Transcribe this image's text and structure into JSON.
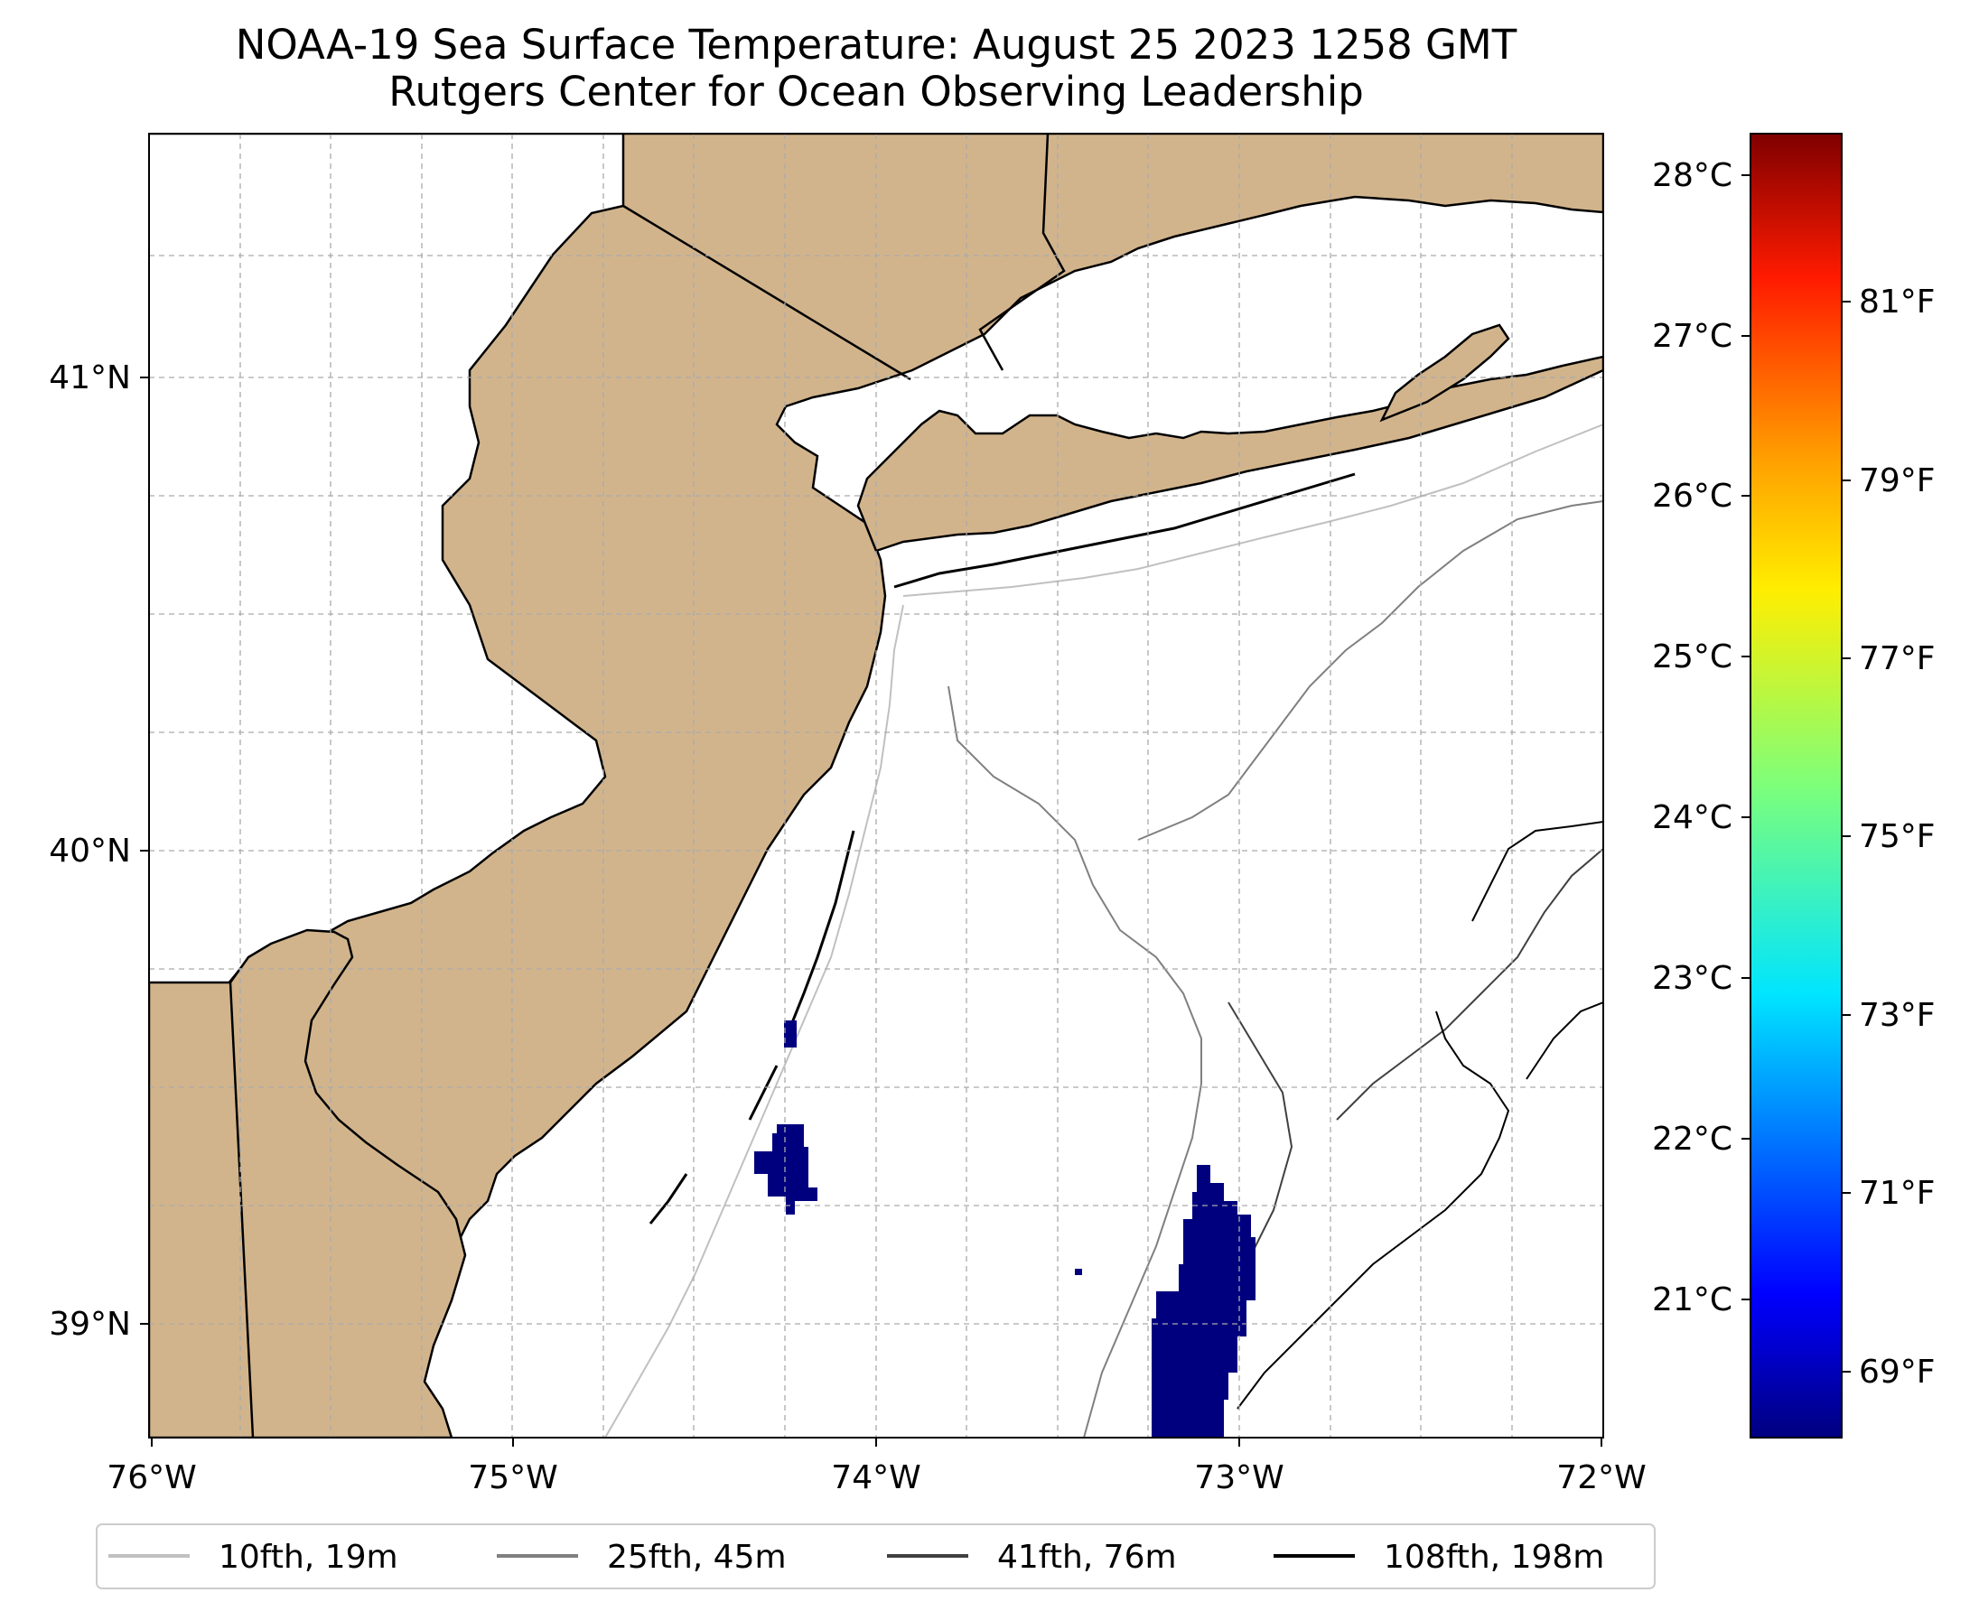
{
  "title": {
    "line1": "NOAA-19 Sea Surface Temperature: August 25 2023 1258 GMT",
    "line2": "Rutgers Center for Ocean Observing Leadership"
  },
  "map": {
    "lon_range": [
      -76,
      -72
    ],
    "lat_range": [
      38.72,
      41.52
    ],
    "land_color": "#d2b48c",
    "water_color": "#ffffff",
    "cold_sst_color": "#00007f",
    "grid": true,
    "x_ticks": [
      "76°W",
      "75°W",
      "74°W",
      "73°W",
      "72°W"
    ],
    "y_ticks": [
      "41°N",
      "40°N",
      "39°N"
    ]
  },
  "colorbar": {
    "colormap": "jet",
    "celsius_ticks": [
      "28°C",
      "27°C",
      "26°C",
      "25°C",
      "24°C",
      "23°C",
      "22°C",
      "21°C"
    ],
    "fahrenheit_ticks": [
      "81°F",
      "79°F",
      "77°F",
      "75°F",
      "73°F",
      "71°F",
      "69°F"
    ]
  },
  "legend": {
    "items": [
      {
        "label": "10fth, 19m",
        "color": "#c0c0c0"
      },
      {
        "label": "25fth, 45m",
        "color": "#808080"
      },
      {
        "label": "41fth, 76m",
        "color": "#404040"
      },
      {
        "label": "108fth, 198m",
        "color": "#000000"
      }
    ]
  }
}
